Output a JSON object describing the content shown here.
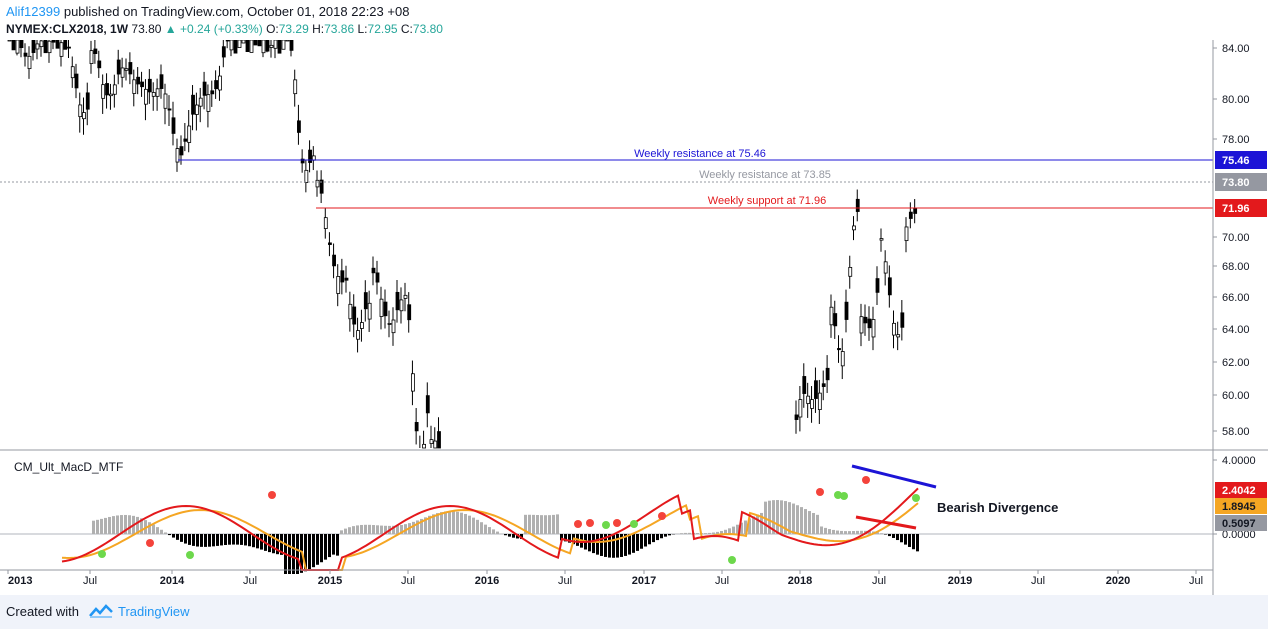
{
  "header": {
    "author": "Alif12399",
    "published": "published on TradingView.com, October 01, 2018 22:23 +08",
    "symbol": "NYMEX:CLX2018, 1W",
    "last": "73.80",
    "change": "+0.24 (+0.33%)",
    "open_label": "O:",
    "open": "73.29",
    "high_label": "H:",
    "high": "73.86",
    "low_label": "L:",
    "low": "72.95",
    "close_label": "C:",
    "close": "73.80"
  },
  "chart_data": {
    "type": "candlestick",
    "price_axis_ticks": [
      "84.00",
      "80.00",
      "78.00",
      "70.00",
      "68.00",
      "66.00",
      "64.00",
      "62.00",
      "60.00",
      "58.00"
    ],
    "time_axis_labels": [
      "2013",
      "Jul",
      "2014",
      "Jul",
      "2015",
      "Jul",
      "2016",
      "Jul",
      "2017",
      "Jul",
      "2018",
      "Jul",
      "2019",
      "Jul",
      "2020",
      "Jul"
    ],
    "levels": [
      {
        "label": "Weekly resistance at 75.46",
        "value": 75.46,
        "badge": "75.46",
        "color": "#1c14d6"
      },
      {
        "label": "Weekly resistance at 73.85",
        "value": 73.85,
        "badge": "73.80",
        "color": "#9598a1"
      },
      {
        "label": "Weekly support at 71.96",
        "value": 71.96,
        "badge": "71.96",
        "color": "#e3191c"
      }
    ],
    "indicator": {
      "name": "CM_Ult_MacD_MTF",
      "axis_ticks": [
        "4.0000",
        "0.0000"
      ],
      "macd_last": "2.4042",
      "signal_last": "1.8945",
      "hist_last": "0.5097",
      "macd_color": "#e3191c",
      "signal_color": "#f5a623",
      "annotation": "Bearish Divergence"
    }
  },
  "footer": {
    "created": "Created with",
    "brand": "TradingView"
  }
}
